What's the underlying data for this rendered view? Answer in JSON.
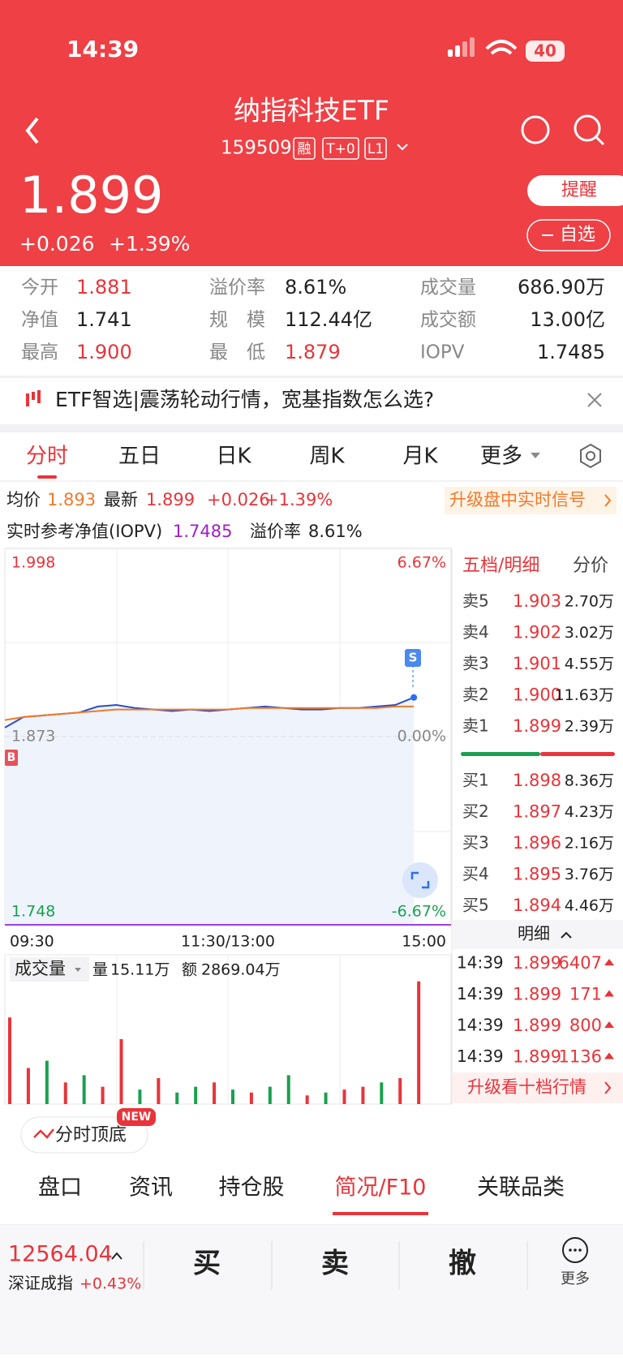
{
  "status_bar": {
    "time": "14:39",
    "battery": "40"
  },
  "header": {
    "title": "纳指科技ETF",
    "code": "159509",
    "badges": [
      "融",
      "T+0",
      "L1"
    ],
    "price": "1.899",
    "change": "+0.026",
    "change_pct": "+1.39%",
    "remind": "提醒",
    "watchlist": "自选"
  },
  "stats": [
    [
      {
        "label": "今开",
        "value": "1.881",
        "color": "#e8343a"
      },
      {
        "label": "溢价率",
        "value": "8.61%",
        "color": "#222222"
      },
      {
        "label": "成交量",
        "value": "686.90万",
        "color": "#222222"
      }
    ],
    [
      {
        "label": "净值",
        "value": "1.741",
        "color": "#222222"
      },
      {
        "label": "规　模",
        "value": "112.44亿",
        "color": "#222222"
      },
      {
        "label": "成交额",
        "value": "13.00亿",
        "color": "#222222"
      }
    ],
    [
      {
        "label": "最高",
        "value": "1.900",
        "color": "#e8343a"
      },
      {
        "label": "最　低",
        "value": "1.879",
        "color": "#e8343a"
      },
      {
        "label": "IOPV",
        "value": "1.7485",
        "color": "#222222"
      }
    ]
  ],
  "banner": "ETF智选|震荡轮动行情，宽基指数怎么选?",
  "tabs": [
    "分时",
    "五日",
    "日K",
    "周K",
    "月K",
    "更多"
  ],
  "info": {
    "avg_label": "均价",
    "avg": "1.893",
    "last_label": "最新",
    "last": "1.899",
    "change": "+0.026",
    "change_pct": "+1.39%",
    "iopv_label": "实时参考净值(IOPV)",
    "iopv": "1.7485",
    "premium_label": "溢价率",
    "premium": "8.61%",
    "signal": "升级盘中实时信号"
  },
  "markers": {
    "buy": "B",
    "sell": "S"
  },
  "order_book": {
    "tabs": [
      "五档/明细",
      "分价"
    ],
    "asks": [
      {
        "label": "卖5",
        "price": "1.903",
        "vol": "2.70万"
      },
      {
        "label": "卖4",
        "price": "1.902",
        "vol": "3.02万"
      },
      {
        "label": "卖3",
        "price": "1.901",
        "vol": "4.55万"
      },
      {
        "label": "卖2",
        "price": "1.900",
        "vol": "11.63万"
      },
      {
        "label": "卖1",
        "price": "1.899",
        "vol": "2.39万"
      }
    ],
    "bids": [
      {
        "label": "买1",
        "price": "1.898",
        "vol": "8.36万"
      },
      {
        "label": "买2",
        "price": "1.897",
        "vol": "4.23万"
      },
      {
        "label": "买3",
        "price": "1.896",
        "vol": "2.16万"
      },
      {
        "label": "买4",
        "price": "1.895",
        "vol": "3.76万"
      },
      {
        "label": "买5",
        "price": "1.894",
        "vol": "4.46万"
      }
    ],
    "detail_label": "明细",
    "trades": [
      {
        "time": "14:39",
        "price": "1.899",
        "vol": "6407"
      },
      {
        "time": "14:39",
        "price": "1.899",
        "vol": "171"
      },
      {
        "time": "14:39",
        "price": "1.899",
        "vol": "800"
      },
      {
        "time": "14:39",
        "price": "1.899",
        "vol": "1136"
      }
    ],
    "upgrade": "升级看十档行情"
  },
  "volume_header": {
    "label": "成交量",
    "vol_label": "量",
    "vol": "15.11万",
    "amt_label": "额",
    "amt": "2869.04万"
  },
  "feature_button": {
    "label": "分时顶底",
    "badge": "NEW"
  },
  "bottom_tabs": [
    "盘口",
    "资讯",
    "持仓股",
    "简况/F10",
    "关联品类"
  ],
  "footer": {
    "index_value": "12564.04",
    "index_name": "深证成指",
    "index_change": "+0.43%",
    "actions": [
      "买",
      "卖",
      "撤"
    ],
    "more": "更多"
  },
  "chart_data": [
    {
      "type": "line",
      "x": [
        0,
        10,
        20,
        30,
        40,
        50,
        60,
        70,
        80,
        90,
        100,
        110,
        120,
        130,
        140,
        150,
        160,
        170,
        180,
        190,
        200,
        210,
        220
      ],
      "xlim": [
        0,
        240
      ],
      "xticks": [
        {
          "value": 0,
          "label": "09:30"
        },
        {
          "value": 120,
          "label": "11:30/13:00"
        },
        {
          "value": 240,
          "label": "15:00"
        }
      ],
      "ylim": [
        1.748,
        1.998
      ],
      "yticks": [
        1.748,
        1.873,
        1.998
      ],
      "ytick_colors": [
        "#1aa050",
        "#888888",
        "#e8343a"
      ],
      "y2lim": [
        -6.67,
        6.67
      ],
      "y2ticks": [
        {
          "value": -6.67,
          "label": "-6.67%"
        },
        {
          "value": 0,
          "label": "0.00%"
        },
        {
          "value": 6.67,
          "label": "6.67%"
        }
      ],
      "series": [
        {
          "color": "#2a4fc4",
          "values": [
            1.879,
            1.886,
            1.887,
            1.888,
            1.889,
            1.893,
            1.894,
            1.892,
            1.891,
            1.89,
            1.891,
            1.89,
            1.891,
            1.892,
            1.893,
            1.892,
            1.891,
            1.891,
            1.892,
            1.892,
            1.893,
            1.894,
            1.899
          ]
        },
        {
          "color": "#f07a2a",
          "values": [
            1.884,
            1.886,
            1.887,
            1.888,
            1.889,
            1.89,
            1.891,
            1.891,
            1.891,
            1.891,
            1.891,
            1.891,
            1.891,
            1.892,
            1.892,
            1.892,
            1.892,
            1.892,
            1.892,
            1.892,
            1.892,
            1.893,
            1.893
          ]
        }
      ]
    },
    {
      "type": "bar",
      "x": [
        0,
        10,
        20,
        30,
        40,
        50,
        60,
        70,
        80,
        90,
        100,
        110,
        120,
        130,
        140,
        150,
        160,
        170,
        180,
        190,
        200,
        210,
        220
      ],
      "xlim": [
        0,
        240
      ],
      "ylim": [
        0,
        100
      ],
      "values": [
        60,
        25,
        30,
        15,
        20,
        12,
        45,
        10,
        18,
        8,
        12,
        15,
        10,
        8,
        12,
        20,
        6,
        8,
        10,
        12,
        15,
        18,
        85
      ],
      "colors": [
        "#e8343a",
        "#e8343a",
        "#1aa050",
        "#e8343a",
        "#1aa050",
        "#e8343a",
        "#e8343a",
        "#1aa050",
        "#e8343a",
        "#1aa050",
        "#1aa050",
        "#e8343a",
        "#1aa050",
        "#e8343a",
        "#1aa050",
        "#1aa050",
        "#e8343a",
        "#1aa050",
        "#e8343a",
        "#e8343a",
        "#1aa050",
        "#e8343a",
        "#e8343a"
      ]
    }
  ]
}
